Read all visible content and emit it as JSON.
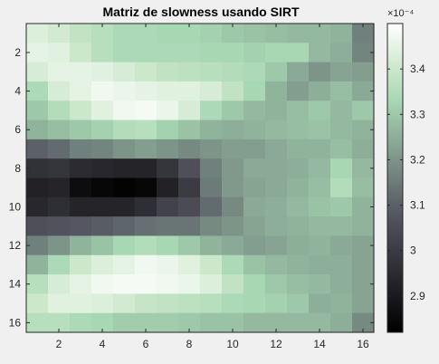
{
  "chart_data": {
    "type": "heatmap",
    "title": "Matriz de slowness usando SIRT",
    "xlabel": "",
    "ylabel": "",
    "rows": 16,
    "cols": 16,
    "x_ticks": [
      2,
      4,
      6,
      8,
      10,
      12,
      14,
      16
    ],
    "y_ticks": [
      2,
      4,
      6,
      8,
      10,
      12,
      14,
      16
    ],
    "x_tick_labels": [
      "2",
      "4",
      "6",
      "8",
      "10",
      "12",
      "14",
      "16"
    ],
    "y_tick_labels": [
      "2",
      "4",
      "6",
      "8",
      "10",
      "12",
      "14",
      "16"
    ],
    "colormap": "bone",
    "clim": [
      2.82,
      3.5
    ],
    "colorbar": {
      "exponent_label": "×10⁻⁴",
      "ticks": [
        2.9,
        3.0,
        3.1,
        3.2,
        3.3,
        3.4
      ],
      "tick_labels": [
        "2.9",
        "3",
        "3.1",
        "3.2",
        "3.3",
        "3.4"
      ]
    },
    "units_scale": "1e-4",
    "values": [
      [
        3.43,
        3.41,
        3.38,
        3.36,
        3.34,
        3.34,
        3.33,
        3.33,
        3.32,
        3.3,
        3.29,
        3.28,
        3.27,
        3.27,
        3.26,
        3.16
      ],
      [
        3.45,
        3.44,
        3.4,
        3.36,
        3.34,
        3.34,
        3.34,
        3.34,
        3.33,
        3.33,
        3.32,
        3.33,
        3.33,
        3.27,
        3.25,
        3.17
      ],
      [
        3.42,
        3.45,
        3.45,
        3.44,
        3.42,
        3.4,
        3.38,
        3.37,
        3.36,
        3.35,
        3.34,
        3.3,
        3.24,
        3.2,
        3.23,
        3.22
      ],
      [
        3.34,
        3.42,
        3.45,
        3.47,
        3.46,
        3.45,
        3.44,
        3.44,
        3.42,
        3.38,
        3.33,
        3.26,
        3.22,
        3.25,
        3.28,
        3.24
      ],
      [
        3.3,
        3.35,
        3.4,
        3.44,
        3.47,
        3.48,
        3.46,
        3.42,
        3.34,
        3.3,
        3.27,
        3.26,
        3.28,
        3.3,
        3.27,
        3.3
      ],
      [
        3.26,
        3.28,
        3.3,
        3.32,
        3.35,
        3.36,
        3.32,
        3.29,
        3.26,
        3.25,
        3.26,
        3.27,
        3.28,
        3.29,
        3.27,
        3.26
      ],
      [
        3.1,
        3.12,
        3.16,
        3.17,
        3.2,
        3.22,
        3.2,
        3.18,
        3.2,
        3.22,
        3.22,
        3.24,
        3.26,
        3.26,
        3.28,
        3.25
      ],
      [
        2.97,
        2.98,
        2.95,
        2.94,
        2.93,
        2.93,
        2.98,
        3.06,
        3.16,
        3.21,
        3.24,
        3.24,
        3.25,
        3.27,
        3.33,
        3.27
      ],
      [
        2.92,
        2.93,
        2.86,
        2.84,
        2.83,
        2.84,
        2.92,
        3.0,
        3.15,
        3.21,
        3.23,
        3.24,
        3.26,
        3.28,
        3.35,
        3.28
      ],
      [
        2.94,
        2.96,
        2.93,
        2.93,
        2.93,
        2.96,
        3.02,
        3.05,
        3.12,
        3.18,
        3.24,
        3.25,
        3.27,
        3.29,
        3.3,
        3.26
      ],
      [
        3.06,
        3.07,
        3.08,
        3.09,
        3.11,
        3.13,
        3.14,
        3.14,
        3.18,
        3.2,
        3.23,
        3.25,
        3.26,
        3.27,
        3.27,
        3.26
      ],
      [
        3.16,
        3.2,
        3.26,
        3.29,
        3.33,
        3.35,
        3.33,
        3.3,
        3.26,
        3.24,
        3.22,
        3.23,
        3.25,
        3.26,
        3.24,
        3.23
      ],
      [
        3.26,
        3.34,
        3.4,
        3.43,
        3.45,
        3.47,
        3.46,
        3.44,
        3.4,
        3.34,
        3.29,
        3.27,
        3.26,
        3.25,
        3.25,
        3.23
      ],
      [
        3.36,
        3.42,
        3.45,
        3.47,
        3.48,
        3.48,
        3.47,
        3.46,
        3.43,
        3.38,
        3.33,
        3.3,
        3.28,
        3.27,
        3.25,
        3.23
      ],
      [
        3.4,
        3.44,
        3.44,
        3.43,
        3.41,
        3.39,
        3.38,
        3.37,
        3.36,
        3.34,
        3.33,
        3.32,
        3.3,
        3.25,
        3.26,
        3.23
      ],
      [
        3.36,
        3.36,
        3.34,
        3.33,
        3.31,
        3.31,
        3.31,
        3.3,
        3.29,
        3.29,
        3.27,
        3.27,
        3.27,
        3.27,
        3.25,
        3.18
      ]
    ]
  }
}
